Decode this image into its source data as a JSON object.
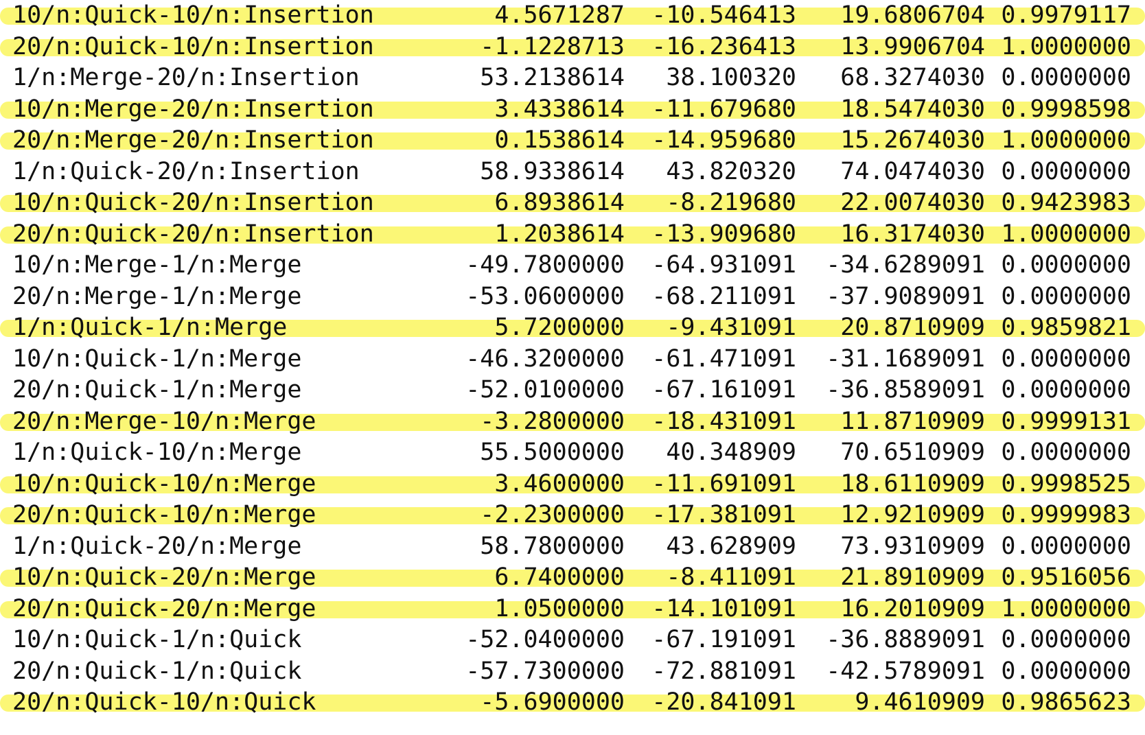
{
  "colors": {
    "highlight": "#fbf66a",
    "text": "#111111",
    "background": "#ffffff"
  },
  "rows": [
    {
      "comparison": "10/n:Quick-10/n:Insertion",
      "diff": "4.5671287",
      "lwr": "-10.546413",
      "upr": "19.6806704",
      "p_adj": "0.9979117",
      "highlighted": true
    },
    {
      "comparison": "20/n:Quick-10/n:Insertion",
      "diff": "-1.1228713",
      "lwr": "-16.236413",
      "upr": "13.9906704",
      "p_adj": "1.0000000",
      "highlighted": true
    },
    {
      "comparison": "1/n:Merge-20/n:Insertion",
      "diff": "53.2138614",
      "lwr": "38.100320",
      "upr": "68.3274030",
      "p_adj": "0.0000000",
      "highlighted": false
    },
    {
      "comparison": "10/n:Merge-20/n:Insertion",
      "diff": "3.4338614",
      "lwr": "-11.679680",
      "upr": "18.5474030",
      "p_adj": "0.9998598",
      "highlighted": true
    },
    {
      "comparison": "20/n:Merge-20/n:Insertion",
      "diff": "0.1538614",
      "lwr": "-14.959680",
      "upr": "15.2674030",
      "p_adj": "1.0000000",
      "highlighted": true
    },
    {
      "comparison": "1/n:Quick-20/n:Insertion",
      "diff": "58.9338614",
      "lwr": "43.820320",
      "upr": "74.0474030",
      "p_adj": "0.0000000",
      "highlighted": false
    },
    {
      "comparison": "10/n:Quick-20/n:Insertion",
      "diff": "6.8938614",
      "lwr": "-8.219680",
      "upr": "22.0074030",
      "p_adj": "0.9423983",
      "highlighted": true
    },
    {
      "comparison": "20/n:Quick-20/n:Insertion",
      "diff": "1.2038614",
      "lwr": "-13.909680",
      "upr": "16.3174030",
      "p_adj": "1.0000000",
      "highlighted": true
    },
    {
      "comparison": "10/n:Merge-1/n:Merge",
      "diff": "-49.7800000",
      "lwr": "-64.931091",
      "upr": "-34.6289091",
      "p_adj": "0.0000000",
      "highlighted": false
    },
    {
      "comparison": "20/n:Merge-1/n:Merge",
      "diff": "-53.0600000",
      "lwr": "-68.211091",
      "upr": "-37.9089091",
      "p_adj": "0.0000000",
      "highlighted": false
    },
    {
      "comparison": "1/n:Quick-1/n:Merge",
      "diff": "5.7200000",
      "lwr": "-9.431091",
      "upr": "20.8710909",
      "p_adj": "0.9859821",
      "highlighted": true
    },
    {
      "comparison": "10/n:Quick-1/n:Merge",
      "diff": "-46.3200000",
      "lwr": "-61.471091",
      "upr": "-31.1689091",
      "p_adj": "0.0000000",
      "highlighted": false
    },
    {
      "comparison": "20/n:Quick-1/n:Merge",
      "diff": "-52.0100000",
      "lwr": "-67.161091",
      "upr": "-36.8589091",
      "p_adj": "0.0000000",
      "highlighted": false
    },
    {
      "comparison": "20/n:Merge-10/n:Merge",
      "diff": "-3.2800000",
      "lwr": "-18.431091",
      "upr": "11.8710909",
      "p_adj": "0.9999131",
      "highlighted": true
    },
    {
      "comparison": "1/n:Quick-10/n:Merge",
      "diff": "55.5000000",
      "lwr": "40.348909",
      "upr": "70.6510909",
      "p_adj": "0.0000000",
      "highlighted": false
    },
    {
      "comparison": "10/n:Quick-10/n:Merge",
      "diff": "3.4600000",
      "lwr": "-11.691091",
      "upr": "18.6110909",
      "p_adj": "0.9998525",
      "highlighted": true
    },
    {
      "comparison": "20/n:Quick-10/n:Merge",
      "diff": "-2.2300000",
      "lwr": "-17.381091",
      "upr": "12.9210909",
      "p_adj": "0.9999983",
      "highlighted": true
    },
    {
      "comparison": "1/n:Quick-20/n:Merge",
      "diff": "58.7800000",
      "lwr": "43.628909",
      "upr": "73.9310909",
      "p_adj": "0.0000000",
      "highlighted": false
    },
    {
      "comparison": "10/n:Quick-20/n:Merge",
      "diff": "6.7400000",
      "lwr": "-8.411091",
      "upr": "21.8910909",
      "p_adj": "0.9516056",
      "highlighted": true
    },
    {
      "comparison": "20/n:Quick-20/n:Merge",
      "diff": "1.0500000",
      "lwr": "-14.101091",
      "upr": "16.2010909",
      "p_adj": "1.0000000",
      "highlighted": true
    },
    {
      "comparison": "10/n:Quick-1/n:Quick",
      "diff": "-52.0400000",
      "lwr": "-67.191091",
      "upr": "-36.8889091",
      "p_adj": "0.0000000",
      "highlighted": false
    },
    {
      "comparison": "20/n:Quick-1/n:Quick",
      "diff": "-57.7300000",
      "lwr": "-72.881091",
      "upr": "-42.5789091",
      "p_adj": "0.0000000",
      "highlighted": false
    },
    {
      "comparison": "20/n:Quick-10/n:Quick",
      "diff": "-5.6900000",
      "lwr": "-20.841091",
      "upr": "9.4610909",
      "p_adj": "0.9865623",
      "highlighted": true
    }
  ]
}
